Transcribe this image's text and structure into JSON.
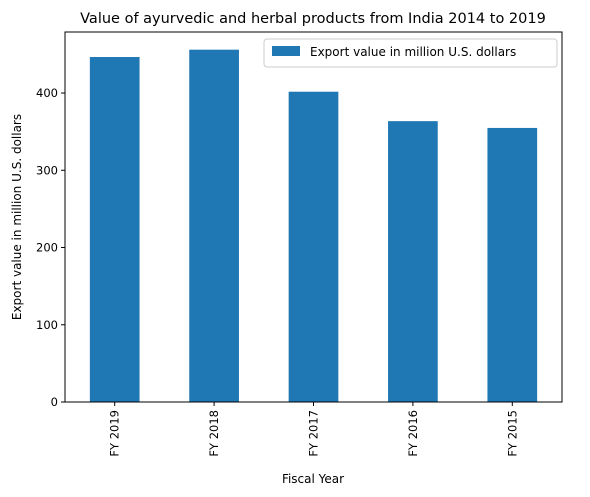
{
  "chart_data": {
    "type": "bar",
    "title": "Value of ayurvedic and herbal products from India 2014 to 2019",
    "xlabel": "Fiscal Year",
    "ylabel": "Export value in million U.S. dollars",
    "categories": [
      "FY 2019",
      "FY 2018",
      "FY 2017",
      "FY 2016",
      "FY 2015"
    ],
    "series": [
      {
        "name": "Export value in million U.S. dollars",
        "values": [
          446.6,
          456.1,
          401.7,
          363.6,
          354.8
        ],
        "color": "#1f77b4"
      }
    ],
    "ylim": [
      0,
      479
    ],
    "yticks": [
      0,
      100,
      200,
      300,
      400
    ],
    "grid": false,
    "legend_position": "top-right",
    "x_tick_rotation": "vertical"
  }
}
